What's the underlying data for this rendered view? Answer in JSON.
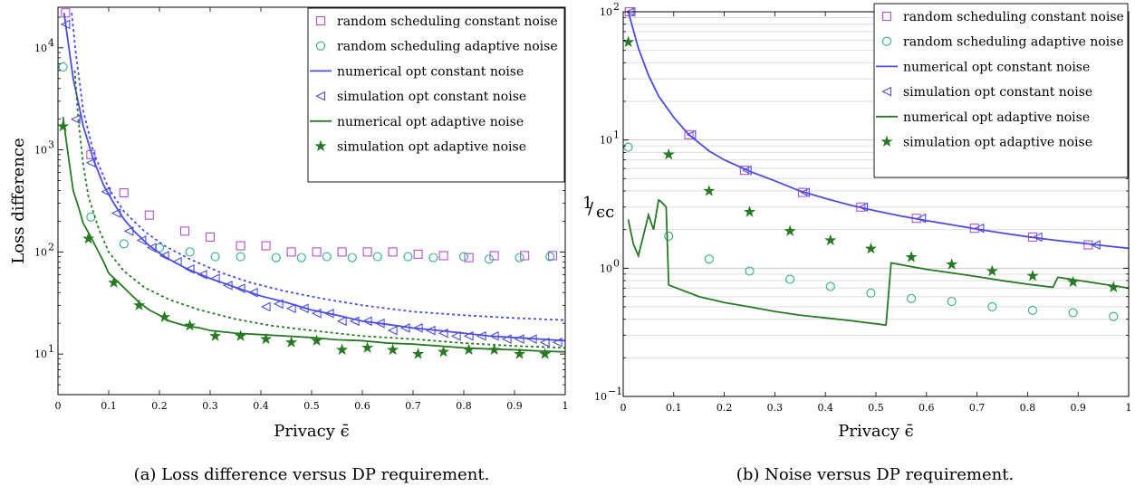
{
  "colors": {
    "purple": "#b54fd6",
    "teal": "#2fae8c",
    "blue": "#4b4de0",
    "green": "#277a23"
  },
  "chart_data": [
    {
      "type": "line",
      "caption": "(a) Loss difference versus DP requirement.",
      "xlabel": "Privacy ϵ̄",
      "ylabel": "Loss difference",
      "xlim": [
        0,
        1
      ],
      "ylim": [
        4,
        25000
      ],
      "yscale": "log",
      "legend_position": "top-right",
      "x_ticks": [
        {
          "v": 0,
          "label": "0"
        },
        {
          "v": 0.1,
          "label": "0.1"
        },
        {
          "v": 0.2,
          "label": "0.2"
        },
        {
          "v": 0.3,
          "label": "0.3"
        },
        {
          "v": 0.4,
          "label": "0.4"
        },
        {
          "v": 0.5,
          "label": "0.5"
        },
        {
          "v": 0.6,
          "label": "0.6"
        },
        {
          "v": 0.7,
          "label": "0.7"
        },
        {
          "v": 0.8,
          "label": "0.8"
        },
        {
          "v": 0.9,
          "label": "0.9"
        },
        {
          "v": 1,
          "label": "1"
        }
      ],
      "y_ticks": [
        {
          "v": 10,
          "base": "10",
          "exp": "1"
        },
        {
          "v": 100,
          "base": "10",
          "exp": "2"
        },
        {
          "v": 1000,
          "base": "10",
          "exp": "3"
        },
        {
          "v": 10000,
          "base": "10",
          "exp": "4"
        }
      ],
      "series": [
        {
          "name": "random scheduling constant noise",
          "kind": "marker",
          "marker": "square",
          "color": "#b54fd6",
          "x": [
            0.015,
            0.065,
            0.13,
            0.18,
            0.25,
            0.3,
            0.36,
            0.41,
            0.46,
            0.51,
            0.56,
            0.61,
            0.66,
            0.71,
            0.76,
            0.81,
            0.86,
            0.92,
            0.975
          ],
          "y": [
            22000,
            900,
            380,
            230,
            160,
            140,
            115,
            115,
            100,
            100,
            100,
            100,
            100,
            95,
            92,
            88,
            92,
            92,
            92
          ]
        },
        {
          "name": "random scheduling adaptive noise",
          "kind": "marker",
          "marker": "circle",
          "color": "#2fae8c",
          "x": [
            0.01,
            0.065,
            0.13,
            0.2,
            0.26,
            0.31,
            0.36,
            0.43,
            0.48,
            0.53,
            0.58,
            0.63,
            0.69,
            0.74,
            0.8,
            0.85,
            0.91,
            0.97
          ],
          "y": [
            6500,
            220,
            120,
            110,
            100,
            90,
            90,
            88,
            88,
            90,
            88,
            90,
            90,
            88,
            90,
            85,
            88,
            90
          ]
        },
        {
          "name": "numerical opt constant noise",
          "kind": "line",
          "color": "#4b4de0",
          "x": [
            0.012,
            0.03,
            0.05,
            0.07,
            0.09,
            0.11,
            0.13,
            0.15,
            0.18,
            0.21,
            0.25,
            0.3,
            0.35,
            0.4,
            0.45,
            0.5,
            0.55,
            0.6,
            0.65,
            0.7,
            0.75,
            0.8,
            0.85,
            0.9,
            0.95,
            1.0
          ],
          "y": [
            22000,
            5000,
            1700,
            800,
            450,
            300,
            210,
            160,
            115,
            90,
            70,
            55,
            45,
            37,
            32,
            27,
            24,
            21,
            19.5,
            18,
            17,
            16,
            15,
            14.5,
            14,
            13.5
          ]
        },
        {
          "name": "simulation opt constant noise",
          "kind": "marker",
          "marker": "triangle-left",
          "color": "#4b4de0",
          "x": [
            0.015,
            0.035,
            0.065,
            0.095,
            0.115,
            0.14,
            0.165,
            0.185,
            0.21,
            0.235,
            0.26,
            0.285,
            0.31,
            0.335,
            0.36,
            0.385,
            0.41,
            0.435,
            0.46,
            0.485,
            0.51,
            0.535,
            0.56,
            0.585,
            0.61,
            0.635,
            0.66,
            0.685,
            0.71,
            0.735,
            0.76,
            0.785,
            0.81,
            0.835,
            0.86,
            0.885,
            0.91,
            0.935,
            0.96,
            0.985
          ],
          "y": [
            17000,
            2000,
            750,
            390,
            240,
            160,
            130,
            110,
            92,
            80,
            68,
            60,
            55,
            47,
            44,
            40,
            29,
            31,
            28,
            28,
            25,
            25,
            21,
            21,
            21,
            20,
            17,
            18,
            18,
            17,
            16,
            15,
            15,
            15,
            15,
            14,
            14,
            14,
            13,
            13
          ]
        },
        {
          "name": "numerical opt adaptive noise",
          "kind": "line",
          "color": "#277a23",
          "x": [
            0.01,
            0.02,
            0.03,
            0.04,
            0.05,
            0.06,
            0.07,
            0.08,
            0.09,
            0.1,
            0.12,
            0.14,
            0.16,
            0.18,
            0.2,
            0.22,
            0.25,
            0.28,
            0.3,
            0.35,
            0.4,
            0.45,
            0.5,
            0.55,
            0.6,
            0.65,
            0.7,
            0.75,
            0.8,
            0.85,
            0.9,
            0.95,
            1.0
          ],
          "y": [
            2100,
            900,
            400,
            280,
            190,
            155,
            125,
            100,
            80,
            62,
            50,
            40,
            32,
            27,
            24,
            21,
            19,
            18,
            17,
            16,
            15.5,
            15,
            14.5,
            13.8,
            13.5,
            12.8,
            12.5,
            12,
            11.5,
            11.2,
            11,
            10.7,
            10.5
          ]
        },
        {
          "name": "simulation opt adaptive noise",
          "kind": "marker",
          "marker": "star",
          "color": "#277a23",
          "x": [
            0.01,
            0.06,
            0.11,
            0.16,
            0.21,
            0.26,
            0.31,
            0.36,
            0.41,
            0.46,
            0.51,
            0.56,
            0.61,
            0.66,
            0.71,
            0.76,
            0.81,
            0.86,
            0.91,
            0.96
          ],
          "y": [
            1700,
            135,
            50,
            30,
            23,
            19,
            15,
            15,
            14,
            13,
            13.5,
            11,
            11.5,
            11,
            10,
            10.5,
            11,
            11,
            10,
            10
          ]
        },
        {
          "name": "",
          "kind": "dotted",
          "color": "#4b4de0",
          "x": [
            0.027,
            0.035,
            0.05,
            0.07,
            0.1,
            0.13,
            0.17,
            0.21,
            0.26,
            0.32,
            0.38,
            0.45,
            0.52,
            0.6,
            0.7,
            0.8,
            0.9,
            1.0
          ],
          "y": [
            22000,
            9000,
            2400,
            950,
            420,
            250,
            160,
            115,
            85,
            63,
            50,
            41,
            35,
            30,
            26,
            24,
            22.5,
            21.5
          ]
        },
        {
          "name": "",
          "kind": "dotted",
          "color": "#277a23",
          "x": [
            0.033,
            0.04,
            0.05,
            0.06,
            0.08,
            0.1,
            0.13,
            0.17,
            0.22,
            0.28,
            0.35,
            0.42,
            0.5,
            0.6,
            0.7,
            0.8,
            0.9,
            1.0
          ],
          "y": [
            6000,
            2000,
            700,
            350,
            170,
            100,
            65,
            45,
            34,
            27,
            22,
            19,
            17,
            15,
            14,
            12.8,
            12,
            11.5
          ]
        }
      ]
    },
    {
      "type": "line",
      "caption": "(b) Noise versus DP requirement.",
      "xlabel": "Privacy ϵ̄",
      "ylabel_num": "1",
      "ylabel_den": "ϵc",
      "xlim": [
        0,
        1
      ],
      "ylim": [
        0.1,
        100
      ],
      "yscale": "log",
      "legend_position": "top-right",
      "x_ticks": [
        {
          "v": 0,
          "label": "0"
        },
        {
          "v": 0.1,
          "label": "0.1"
        },
        {
          "v": 0.2,
          "label": "0.2"
        },
        {
          "v": 0.3,
          "label": "0.3"
        },
        {
          "v": 0.4,
          "label": "0.4"
        },
        {
          "v": 0.5,
          "label": "0.5"
        },
        {
          "v": 0.6,
          "label": "0.6"
        },
        {
          "v": 0.7,
          "label": "0.7"
        },
        {
          "v": 0.8,
          "label": "0.8"
        },
        {
          "v": 0.9,
          "label": "0.9"
        },
        {
          "v": 1,
          "label": "1"
        }
      ],
      "y_ticks": [
        {
          "v": 0.1,
          "base": "10",
          "exp": "−1"
        },
        {
          "v": 1,
          "base": "10",
          "exp": "0"
        },
        {
          "v": 10,
          "base": "10",
          "exp": "1"
        },
        {
          "v": 100,
          "base": "10",
          "exp": "2"
        }
      ],
      "series": [
        {
          "name": "random scheduling constant noise",
          "kind": "marker",
          "marker": "square",
          "color": "#b54fd6",
          "x": [
            0.012,
            0.13,
            0.24,
            0.355,
            0.47,
            0.58,
            0.695,
            0.81,
            0.92
          ],
          "y": [
            100,
            11,
            5.8,
            3.9,
            3.0,
            2.45,
            2.05,
            1.75,
            1.52
          ]
        },
        {
          "name": "random scheduling adaptive noise",
          "kind": "marker",
          "marker": "circle",
          "color": "#2fae8c",
          "x": [
            0.01,
            0.09,
            0.17,
            0.25,
            0.33,
            0.41,
            0.49,
            0.57,
            0.65,
            0.73,
            0.81,
            0.89,
            0.97
          ],
          "y": [
            8.8,
            1.78,
            1.18,
            0.95,
            0.82,
            0.72,
            0.64,
            0.58,
            0.55,
            0.5,
            0.47,
            0.45,
            0.42
          ]
        },
        {
          "name": "numerical opt constant noise",
          "kind": "line",
          "color": "#4b4de0",
          "x": [
            0.01,
            0.02,
            0.03,
            0.05,
            0.07,
            0.1,
            0.13,
            0.17,
            0.2,
            0.25,
            0.3,
            0.35,
            0.4,
            0.45,
            0.5,
            0.55,
            0.6,
            0.65,
            0.7,
            0.75,
            0.8,
            0.85,
            0.9,
            0.95,
            1.0
          ],
          "y": [
            100,
            72,
            52,
            32,
            22,
            15,
            11,
            8.2,
            7.0,
            5.7,
            4.8,
            4.0,
            3.5,
            3.1,
            2.8,
            2.55,
            2.35,
            2.18,
            2.02,
            1.88,
            1.76,
            1.66,
            1.58,
            1.5,
            1.43
          ]
        },
        {
          "name": "simulation opt constant noise",
          "kind": "marker",
          "marker": "triangle-left",
          "color": "#4b4de0",
          "x": [
            0.015,
            0.135,
            0.245,
            0.36,
            0.475,
            0.59,
            0.705,
            0.82,
            0.935
          ],
          "y": [
            100,
            11,
            5.8,
            3.9,
            3.0,
            2.45,
            2.05,
            1.75,
            1.52
          ]
        },
        {
          "name": "numerical opt adaptive noise",
          "kind": "line",
          "color": "#277a23",
          "x": [
            0.01,
            0.02,
            0.03,
            0.04,
            0.05,
            0.06,
            0.07,
            0.075,
            0.085,
            0.09,
            0.15,
            0.2,
            0.25,
            0.3,
            0.35,
            0.4,
            0.45,
            0.52,
            0.53,
            0.6,
            0.65,
            0.7,
            0.75,
            0.8,
            0.85,
            0.86,
            1.0
          ],
          "y": [
            2.4,
            1.55,
            1.25,
            1.8,
            2.6,
            2.0,
            3.4,
            3.3,
            3.0,
            0.74,
            0.6,
            0.54,
            0.5,
            0.46,
            0.43,
            0.41,
            0.39,
            0.36,
            1.1,
            0.98,
            0.92,
            0.86,
            0.8,
            0.75,
            0.71,
            0.85,
            0.7
          ]
        },
        {
          "name": "simulation opt adaptive noise",
          "kind": "marker",
          "marker": "star",
          "color": "#277a23",
          "x": [
            0.01,
            0.09,
            0.17,
            0.25,
            0.33,
            0.41,
            0.49,
            0.57,
            0.65,
            0.73,
            0.81,
            0.89,
            0.97
          ],
          "y": [
            58,
            7.7,
            4.0,
            2.75,
            1.95,
            1.65,
            1.42,
            1.22,
            1.07,
            0.95,
            0.87,
            0.78,
            0.71
          ]
        }
      ]
    }
  ]
}
